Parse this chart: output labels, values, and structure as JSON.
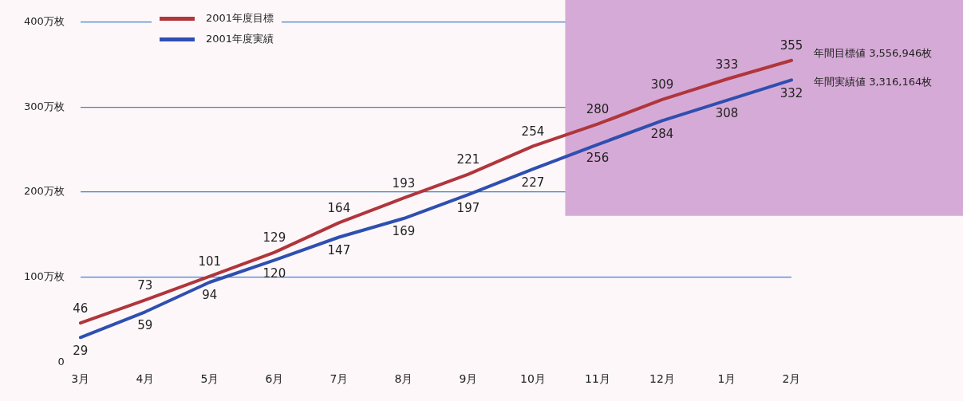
{
  "chart_data": {
    "type": "line",
    "categories": [
      "3月",
      "4月",
      "5月",
      "6月",
      "7月",
      "8月",
      "9月",
      "10月",
      "11月",
      "12月",
      "1月",
      "2月"
    ],
    "series": [
      {
        "name": "2001年度目標",
        "color": "#b0363c",
        "values": [
          46,
          73,
          101,
          129,
          164,
          193,
          221,
          254,
          280,
          309,
          333,
          355
        ]
      },
      {
        "name": "2001年度実績",
        "color": "#2f4fb0",
        "values": [
          29,
          59,
          94,
          120,
          147,
          169,
          197,
          227,
          256,
          284,
          308,
          332
        ]
      }
    ],
    "ylim": [
      0,
      400
    ],
    "yticks": [
      {
        "value": 0,
        "label": "0"
      },
      {
        "value": 100,
        "label": "100万枚"
      },
      {
        "value": 200,
        "label": "200万枚"
      },
      {
        "value": 300,
        "label": "300万枚"
      },
      {
        "value": 400,
        "label": "400万枚"
      }
    ],
    "grid": "y",
    "legend": "top left",
    "marker": "none",
    "line_style": "solid",
    "data_labels": true,
    "bands": [
      {
        "axis": "x",
        "from": "11月",
        "to": "2月",
        "color": "#d6aad6"
      }
    ],
    "annotations": [
      "年間目標値 3,556,946枚",
      "年間実績値 3,316,164枚"
    ]
  }
}
